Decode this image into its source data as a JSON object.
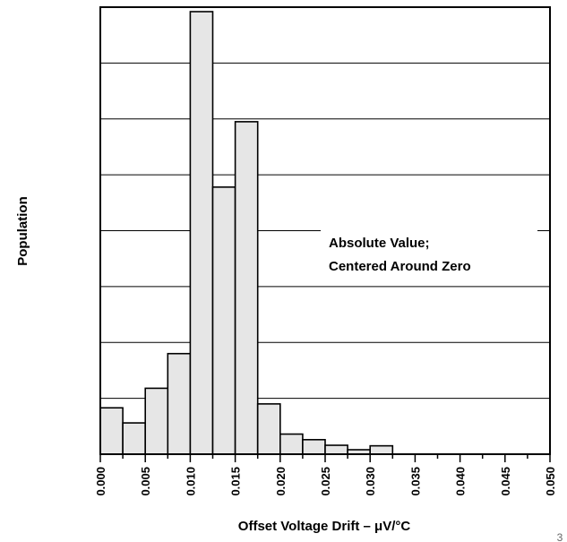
{
  "chart_data": {
    "type": "bar",
    "xlabel": "Offset Voltage Drift – μV/°C",
    "ylabel": "Population",
    "bin_width": 0.0025,
    "x_ticks": [
      "0.000",
      "0.005",
      "0.010",
      "0.015",
      "0.020",
      "0.025",
      "0.030",
      "0.035",
      "0.040",
      "0.045",
      "0.050"
    ],
    "xlim": [
      0,
      0.05
    ],
    "ylim": [
      0,
      8
    ],
    "bins_start": [
      0.0,
      0.0025,
      0.005,
      0.0075,
      0.01,
      0.0125,
      0.015,
      0.0175,
      0.02,
      0.0225,
      0.025,
      0.0275,
      0.03
    ],
    "values": [
      0.83,
      0.56,
      1.18,
      1.8,
      7.92,
      4.78,
      5.95,
      0.9,
      0.36,
      0.26,
      0.16,
      0.08,
      0.15
    ],
    "grid": "horizontal",
    "bar_color": "#e6e6e6",
    "annotation": [
      "Absolute Value;",
      "Centered Around Zero"
    ],
    "corner_mark": "3"
  }
}
